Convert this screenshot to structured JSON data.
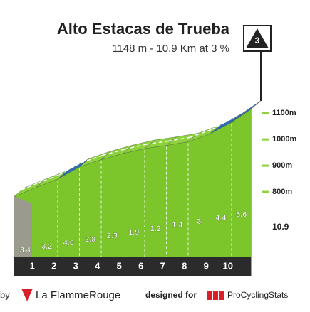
{
  "chart_data": {
    "type": "climb-profile",
    "title": "Alto Estacas de Trueba",
    "subtitle": "1148 m - 10.9 Km at 3 %",
    "category": "3",
    "summit": 1148,
    "distance": 10.9,
    "km_labels": [
      1,
      2,
      3,
      4,
      5,
      6,
      7,
      8,
      9,
      10
    ],
    "gradients": [
      3.4,
      3.2,
      4.6,
      2.8,
      2.3,
      1.9,
      1.2,
      1.4,
      3.0,
      4.4,
      5.6
    ],
    "segment_colors": [
      "#8cd23c",
      "#8cd23c",
      "#2a6db3",
      "#8cd23c",
      "#8cd23c",
      "#8cd23c",
      "#8cd23c",
      "#8cd23c",
      "#8cd23c",
      "#2a6db3",
      "#2a6db3"
    ],
    "ylim": [
      600,
      1160
    ],
    "yticks": [
      {
        "value": 800,
        "label": "800m"
      },
      {
        "value": 900,
        "label": "900m"
      },
      {
        "value": 1000,
        "label": "1000m"
      },
      {
        "value": 1100,
        "label": "1100m"
      }
    ],
    "footer": {
      "by": "by",
      "brand": "La FlammeRouge",
      "designed": "designed for",
      "site": "ProCyclingStats"
    }
  }
}
